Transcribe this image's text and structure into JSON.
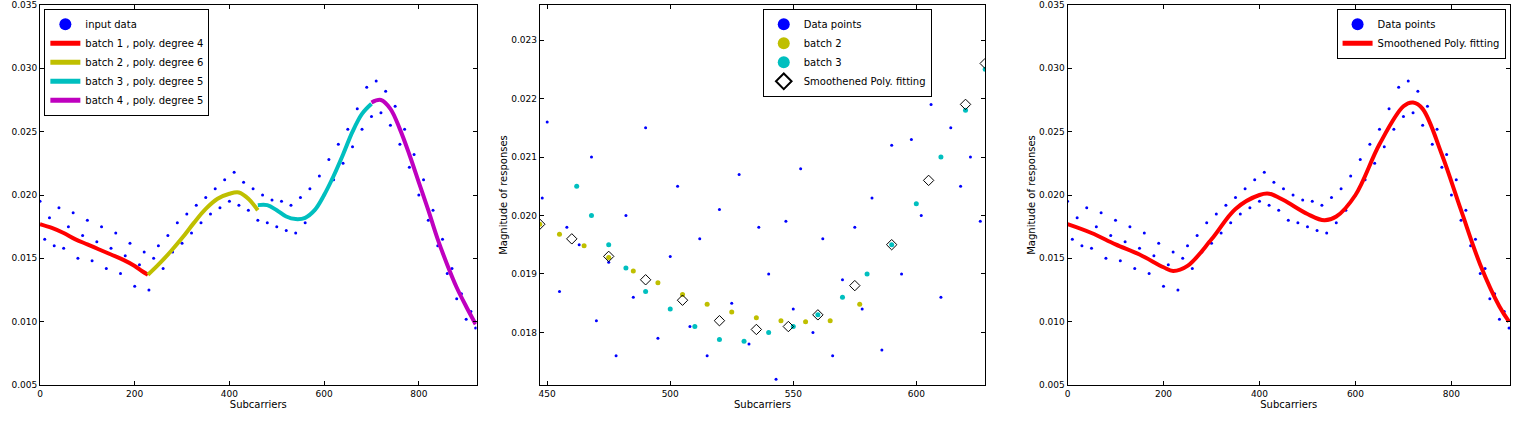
{
  "chart_data": [
    {
      "type": "scatter",
      "x_label": "Subcarriers",
      "xlim": [
        0,
        922
      ],
      "xticks": [
        0,
        200,
        400,
        600,
        800
      ],
      "ylim": [
        0.005,
        0.035
      ],
      "yticks": [
        0.005,
        {
          "value": 0.01,
          "label": "0.010"
        },
        0.015,
        {
          "value": 0.02,
          "label": "0.020"
        },
        0.025,
        {
          "value": 0.03,
          "label": "0.030"
        },
        0.035
      ],
      "grid": false,
      "legend": "upper left",
      "series": [
        {
          "name": "input data",
          "color": "#0000ff",
          "type": "scatter",
          "marker": "circle",
          "x": [
            0,
            10,
            20,
            30,
            40,
            50,
            60,
            70,
            80,
            90,
            100,
            110,
            120,
            130,
            140,
            150,
            160,
            170,
            180,
            190,
            200,
            210,
            220,
            230,
            240,
            250,
            260,
            270,
            280,
            290,
            300,
            310,
            320,
            330,
            340,
            350,
            360,
            370,
            380,
            390,
            400,
            410,
            420,
            430,
            440,
            450,
            460,
            470,
            480,
            490,
            500,
            510,
            520,
            530,
            540,
            550,
            560,
            570,
            580,
            590,
            600,
            610,
            620,
            630,
            640,
            650,
            660,
            670,
            680,
            690,
            700,
            710,
            720,
            730,
            740,
            750,
            760,
            770,
            780,
            790,
            800,
            810,
            820,
            830,
            840,
            850,
            860,
            870,
            880,
            890,
            900,
            910,
            920
          ],
          "values": [
            0.0195,
            0.0165,
            0.0182,
            0.016,
            0.019,
            0.0158,
            0.0175,
            0.0186,
            0.015,
            0.0168,
            0.018,
            0.0148,
            0.0163,
            0.0175,
            0.0142,
            0.0158,
            0.017,
            0.0138,
            0.0152,
            0.0162,
            0.0128,
            0.0145,
            0.0155,
            0.0125,
            0.015,
            0.016,
            0.0142,
            0.0168,
            0.0155,
            0.0178,
            0.0162,
            0.0185,
            0.017,
            0.0192,
            0.0178,
            0.0198,
            0.0185,
            0.0205,
            0.019,
            0.0212,
            0.0195,
            0.0218,
            0.0192,
            0.021,
            0.0188,
            0.0205,
            0.018,
            0.02,
            0.0178,
            0.0196,
            0.0175,
            0.0195,
            0.0172,
            0.0192,
            0.017,
            0.0198,
            0.0178,
            0.0205,
            0.0188,
            0.0215,
            0.02,
            0.0228,
            0.0212,
            0.024,
            0.0225,
            0.0252,
            0.0238,
            0.0268,
            0.0252,
            0.0285,
            0.0262,
            0.029,
            0.0265,
            0.0282,
            0.0255,
            0.027,
            0.024,
            0.0252,
            0.0222,
            0.0232,
            0.02,
            0.0212,
            0.018,
            0.0188,
            0.016,
            0.0165,
            0.0138,
            0.0142,
            0.0118,
            0.0122,
            0.0102,
            0.0108,
            0.0095
          ]
        },
        {
          "name": "batch 1 , poly. degree 4",
          "color": "#ff0000",
          "type": "line",
          "marker": "circle",
          "x": [
            0,
            25,
            50,
            75,
            100,
            125,
            150,
            175,
            200,
            215,
            228
          ],
          "values": [
            0.0177,
            0.0174,
            0.017,
            0.0165,
            0.0161,
            0.0157,
            0.0153,
            0.0149,
            0.0144,
            0.014,
            0.0137
          ]
        },
        {
          "name": "batch 2 , poly. degree 6",
          "color": "#bfbf00",
          "type": "line",
          "marker": "circle",
          "x": [
            228,
            250,
            275,
            300,
            325,
            350,
            375,
            400,
            420,
            440,
            460
          ],
          "values": [
            0.0137,
            0.0145,
            0.0155,
            0.0166,
            0.0178,
            0.0189,
            0.0197,
            0.0201,
            0.0202,
            0.0197,
            0.0188
          ]
        },
        {
          "name": "batch 3 , poly. degree 5",
          "color": "#00bfbf",
          "type": "line",
          "marker": "circle",
          "x": [
            460,
            480,
            500,
            520,
            540,
            560,
            580,
            600,
            620,
            640,
            660,
            680,
            700
          ],
          "values": [
            0.0192,
            0.0192,
            0.0188,
            0.0183,
            0.0181,
            0.0182,
            0.0188,
            0.02,
            0.0215,
            0.0232,
            0.025,
            0.0264,
            0.0272
          ]
        },
        {
          "name": "batch 4 , poly. degree 5",
          "color": "#bf00bf",
          "type": "line",
          "marker": "circle",
          "x": [
            700,
            720,
            740,
            760,
            780,
            800,
            820,
            840,
            860,
            880,
            900,
            920
          ],
          "values": [
            0.0273,
            0.0275,
            0.0268,
            0.0252,
            0.0232,
            0.021,
            0.0188,
            0.0165,
            0.0145,
            0.0127,
            0.0112,
            0.0098
          ]
        }
      ]
    },
    {
      "type": "scatter",
      "x_label": "Subcarriers",
      "y_label": "Magnitude of responses",
      "xlim": [
        447,
        628
      ],
      "xticks": [
        450,
        500,
        550,
        600
      ],
      "ylim": [
        0.0171,
        0.0236
      ],
      "yticks": [
        0.018,
        0.019,
        {
          "value": 0.02,
          "label": "0.020"
        },
        0.021,
        0.022,
        0.023
      ],
      "grid": false,
      "legend": "upper right",
      "series": [
        {
          "name": "Data points",
          "color": "#0000ff",
          "type": "scatter",
          "marker": "circle",
          "x": [
            448,
            450,
            455,
            458,
            463,
            468,
            470,
            475,
            478,
            482,
            485,
            490,
            495,
            500,
            503,
            508,
            512,
            515,
            520,
            525,
            528,
            532,
            536,
            540,
            543,
            547,
            550,
            553,
            558,
            562,
            566,
            570,
            575,
            578,
            582,
            586,
            590,
            594,
            598,
            602,
            606,
            610,
            614,
            618,
            622,
            626
          ],
          "values": [
            0.0203,
            0.0216,
            0.0187,
            0.0198,
            0.0195,
            0.021,
            0.0182,
            0.0192,
            0.0176,
            0.02,
            0.0186,
            0.0215,
            0.0179,
            0.0193,
            0.0205,
            0.0181,
            0.0196,
            0.0176,
            0.0201,
            0.0185,
            0.0207,
            0.0178,
            0.0198,
            0.019,
            0.0172,
            0.0199,
            0.0184,
            0.0208,
            0.018,
            0.0196,
            0.0176,
            0.0189,
            0.0198,
            0.0184,
            0.0203,
            0.0177,
            0.0212,
            0.019,
            0.0213,
            0.02,
            0.0219,
            0.0186,
            0.0215,
            0.0205,
            0.021,
            0.0199
          ]
        },
        {
          "name": "batch 2",
          "color": "#bfbf00",
          "type": "scatter",
          "marker": "circle",
          "x": [
            447,
            455,
            465,
            475,
            485,
            495,
            505,
            515,
            525,
            535,
            545,
            555,
            565,
            577
          ],
          "values": [
            0.01985,
            0.01968,
            0.01948,
            0.01928,
            0.01905,
            0.01885,
            0.01865,
            0.01848,
            0.01835,
            0.01825,
            0.0182,
            0.01818,
            0.0182,
            0.01848
          ]
        },
        {
          "name": "batch 3",
          "color": "#00bfbf",
          "type": "scatter",
          "marker": "circle",
          "x": [
            462,
            468,
            475,
            482,
            490,
            500,
            510,
            520,
            530,
            540,
            550,
            560,
            570,
            580,
            590,
            600,
            610,
            620,
            628
          ],
          "values": [
            0.0205,
            0.02,
            0.0195,
            0.0191,
            0.0187,
            0.0184,
            0.0181,
            0.01788,
            0.01785,
            0.018,
            0.0181,
            0.0183,
            0.0186,
            0.019,
            0.0195,
            0.0202,
            0.021,
            0.0218,
            0.0225
          ]
        },
        {
          "name": "Smoothened Poly. fitting",
          "color": "#000000",
          "type": "scatter",
          "marker": "diamond-open",
          "x": [
            447,
            460,
            475,
            490,
            505,
            520,
            535,
            548,
            560,
            575,
            590,
            605,
            620,
            628
          ],
          "values": [
            0.01985,
            0.0196,
            0.0193,
            0.0189,
            0.01855,
            0.0182,
            0.01805,
            0.0181,
            0.0183,
            0.0188,
            0.0195,
            0.0206,
            0.0219,
            0.0226
          ]
        }
      ]
    },
    {
      "type": "scatter",
      "x_label": "Subcarriers",
      "y_label": "Magnitude of responses",
      "xlim": [
        0,
        922
      ],
      "xticks": [
        0,
        200,
        400,
        600,
        800
      ],
      "ylim": [
        0.005,
        0.035
      ],
      "yticks": [
        0.005,
        {
          "value": 0.01,
          "label": "0.010"
        },
        0.015,
        {
          "value": 0.02,
          "label": "0.020"
        },
        0.025,
        {
          "value": 0.03,
          "label": "0.030"
        },
        0.035
      ],
      "grid": false,
      "legend": "upper right",
      "series": [
        {
          "name": "Data points",
          "color": "#0000ff",
          "type": "scatter",
          "marker": "circle",
          "x": [
            0,
            10,
            20,
            30,
            40,
            50,
            60,
            70,
            80,
            90,
            100,
            110,
            120,
            130,
            140,
            150,
            160,
            170,
            180,
            190,
            200,
            210,
            220,
            230,
            240,
            250,
            260,
            270,
            280,
            290,
            300,
            310,
            320,
            330,
            340,
            350,
            360,
            370,
            380,
            390,
            400,
            410,
            420,
            430,
            440,
            450,
            460,
            470,
            480,
            490,
            500,
            510,
            520,
            530,
            540,
            550,
            560,
            570,
            580,
            590,
            600,
            610,
            620,
            630,
            640,
            650,
            660,
            670,
            680,
            690,
            700,
            710,
            720,
            730,
            740,
            750,
            760,
            770,
            780,
            790,
            800,
            810,
            820,
            830,
            840,
            850,
            860,
            870,
            880,
            890,
            900,
            910,
            920
          ],
          "values": [
            0.0195,
            0.0165,
            0.0182,
            0.016,
            0.019,
            0.0158,
            0.0175,
            0.0186,
            0.015,
            0.0168,
            0.018,
            0.0148,
            0.0163,
            0.0175,
            0.0142,
            0.0158,
            0.017,
            0.0138,
            0.0152,
            0.0162,
            0.0128,
            0.0145,
            0.0155,
            0.0125,
            0.015,
            0.016,
            0.0142,
            0.0168,
            0.0155,
            0.0178,
            0.0162,
            0.0185,
            0.017,
            0.0192,
            0.0178,
            0.0198,
            0.0185,
            0.0205,
            0.019,
            0.0212,
            0.0195,
            0.0218,
            0.0192,
            0.021,
            0.0188,
            0.0205,
            0.018,
            0.02,
            0.0178,
            0.0196,
            0.0175,
            0.0195,
            0.0172,
            0.0192,
            0.017,
            0.0198,
            0.0178,
            0.0205,
            0.0188,
            0.0215,
            0.02,
            0.0228,
            0.0212,
            0.024,
            0.0225,
            0.0252,
            0.0238,
            0.0268,
            0.0252,
            0.0285,
            0.0262,
            0.029,
            0.0265,
            0.0282,
            0.0255,
            0.027,
            0.024,
            0.0252,
            0.0222,
            0.0232,
            0.02,
            0.0212,
            0.018,
            0.0188,
            0.016,
            0.0165,
            0.0138,
            0.0142,
            0.0118,
            0.0122,
            0.0102,
            0.0108,
            0.0095
          ]
        },
        {
          "name": "Smoothened Poly. fitting",
          "color": "#ff0000",
          "type": "line",
          "marker": "circle",
          "x": [
            0,
            50,
            100,
            150,
            200,
            220,
            250,
            300,
            350,
            400,
            420,
            450,
            500,
            535,
            560,
            600,
            650,
            700,
            720,
            740,
            780,
            820,
            860,
            900,
            920
          ],
          "values": [
            0.0177,
            0.017,
            0.0161,
            0.0153,
            0.0143,
            0.014,
            0.0144,
            0.0165,
            0.0189,
            0.02,
            0.0201,
            0.0196,
            0.0185,
            0.018,
            0.0183,
            0.02,
            0.024,
            0.027,
            0.0273,
            0.0268,
            0.0232,
            0.0188,
            0.0145,
            0.0112,
            0.01
          ]
        }
      ]
    }
  ]
}
